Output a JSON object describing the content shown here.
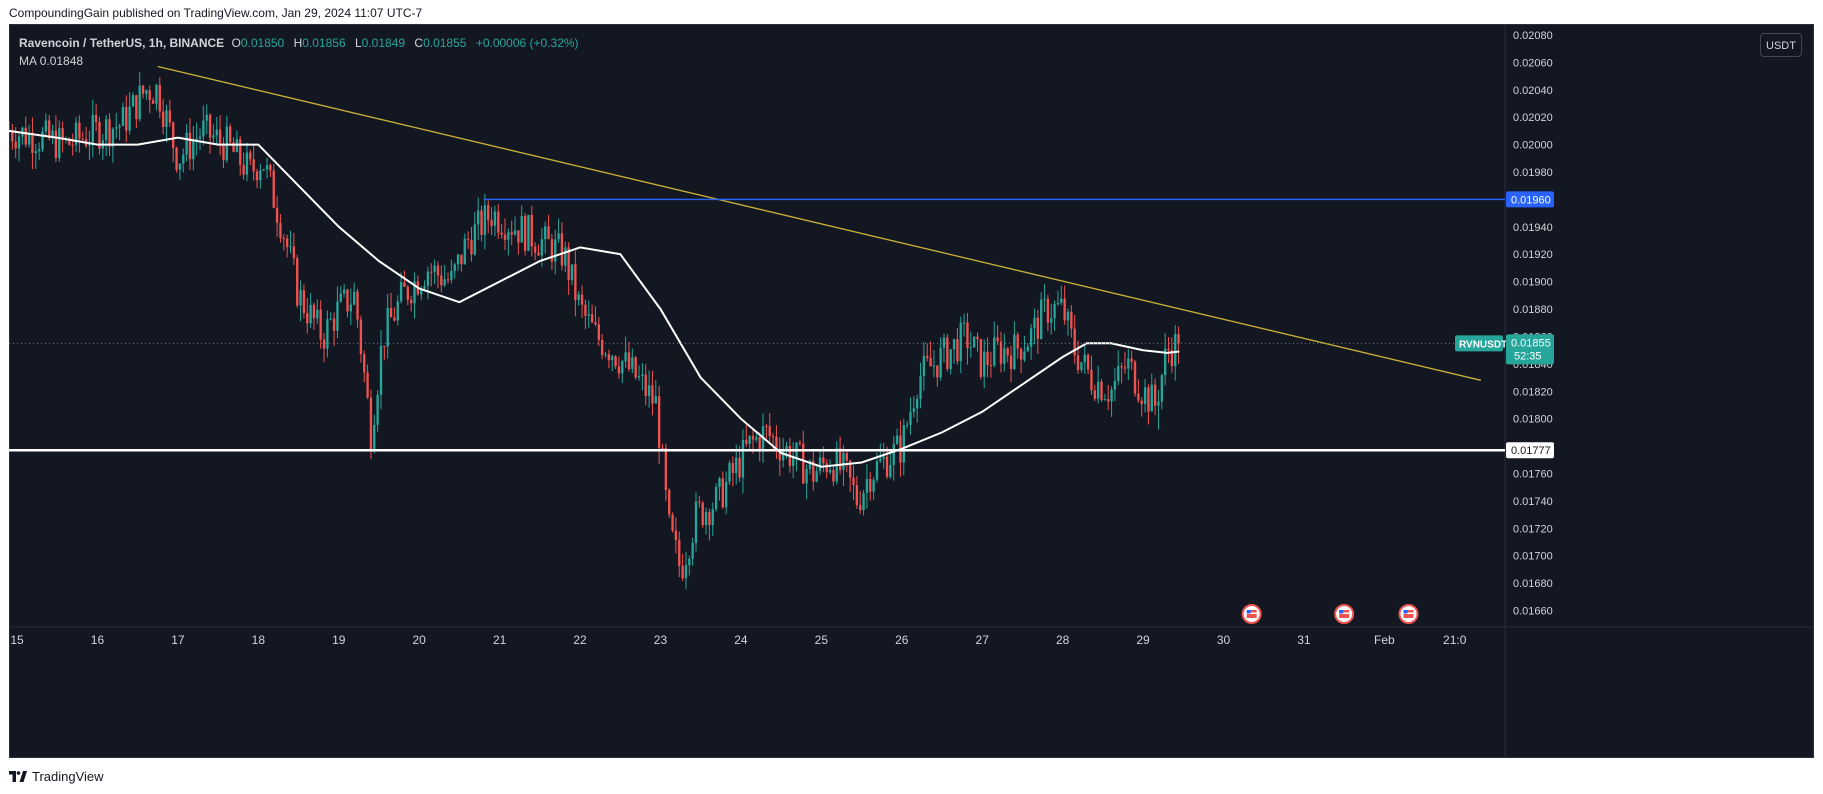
{
  "header": {
    "published_text": "CompoundingGain published on TradingView.com, Jan 29, 2024 11:07 UTC-7"
  },
  "legend": {
    "symbol": "Ravencoin / TetherUS, 1h, BINANCE",
    "open_label": "O",
    "open": "0.01850",
    "high_label": "H",
    "high": "0.01856",
    "low_label": "L",
    "low": "0.01849",
    "close_label": "C",
    "close": "0.01855",
    "change": "+0.00006 (+0.32%)",
    "ma_label": "MA",
    "ma_value": "0.01848"
  },
  "currency_button": "USDT",
  "footer": {
    "brand": "TradingView"
  },
  "colors": {
    "background": "#131722",
    "up": "#26a69a",
    "down": "#ef5350",
    "ma": "#ffffff",
    "trendline": "#c9b037",
    "resistance": "#2962ff",
    "support": "#ffffff"
  },
  "chart_data": {
    "type": "candlestick",
    "symbol": "RVNUSDT",
    "interval": "1h",
    "ylim": [
      0.01648,
      0.02088
    ],
    "y_ticks": [
      0.0166,
      0.0168,
      0.017,
      0.0172,
      0.0174,
      0.0176,
      0.0178,
      0.018,
      0.0182,
      0.0184,
      0.0186,
      0.0188,
      0.019,
      0.0192,
      0.0194,
      0.0196,
      0.0198,
      0.02,
      0.0202,
      0.0204,
      0.0206,
      0.0208
    ],
    "y_tick_labels": [
      "0.01660",
      "0.01680",
      "0.01700",
      "0.01720",
      "0.01740",
      "0.01760",
      "0.01780",
      "0.01800",
      "0.01820",
      "0.01840",
      "0.01860",
      "0.01880",
      "0.01900",
      "0.01920",
      "0.01940",
      "0.01960",
      "0.01980",
      "0.02000",
      "0.02020",
      "0.02040",
      "0.02060",
      "0.02080"
    ],
    "x_range_days": [
      14.9,
      33.5
    ],
    "x_ticks": [
      {
        "day": 15,
        "label": "15"
      },
      {
        "day": 16,
        "label": "16"
      },
      {
        "day": 17,
        "label": "17"
      },
      {
        "day": 18,
        "label": "18"
      },
      {
        "day": 19,
        "label": "19"
      },
      {
        "day": 20,
        "label": "20"
      },
      {
        "day": 21,
        "label": "21"
      },
      {
        "day": 22,
        "label": "22"
      },
      {
        "day": 23,
        "label": "23"
      },
      {
        "day": 24,
        "label": "24"
      },
      {
        "day": 25,
        "label": "25"
      },
      {
        "day": 26,
        "label": "26"
      },
      {
        "day": 27,
        "label": "27"
      },
      {
        "day": 28,
        "label": "28"
      },
      {
        "day": 29,
        "label": "29"
      },
      {
        "day": 30,
        "label": "30"
      },
      {
        "day": 31,
        "label": "31"
      },
      {
        "day": 32,
        "label": "Feb"
      },
      {
        "day": 32.875,
        "label": "21:0"
      }
    ],
    "anchors": [
      [
        14.9,
        0.0201
      ],
      [
        15.3,
        0.02005
      ],
      [
        15.6,
        0.02
      ],
      [
        16.0,
        0.0201
      ],
      [
        16.3,
        0.02015
      ],
      [
        16.6,
        0.0204
      ],
      [
        16.75,
        0.0204
      ],
      [
        17.0,
        0.0199
      ],
      [
        17.3,
        0.0201
      ],
      [
        17.6,
        0.02
      ],
      [
        17.9,
        0.0198
      ],
      [
        18.05,
        0.0199
      ],
      [
        18.3,
        0.0194
      ],
      [
        18.5,
        0.0189
      ],
      [
        18.8,
        0.0186
      ],
      [
        19.0,
        0.0188
      ],
      [
        19.2,
        0.0189
      ],
      [
        19.4,
        0.0179
      ],
      [
        19.55,
        0.0186
      ],
      [
        19.8,
        0.0189
      ],
      [
        20.1,
        0.0191
      ],
      [
        20.4,
        0.019
      ],
      [
        20.6,
        0.0193
      ],
      [
        20.9,
        0.0195
      ],
      [
        21.2,
        0.0194
      ],
      [
        21.5,
        0.0193
      ],
      [
        21.8,
        0.0192
      ],
      [
        22.0,
        0.0188
      ],
      [
        22.2,
        0.0186
      ],
      [
        22.4,
        0.0185
      ],
      [
        22.7,
        0.0183
      ],
      [
        22.95,
        0.0181
      ],
      [
        23.1,
        0.0172
      ],
      [
        23.25,
        0.0169
      ],
      [
        23.45,
        0.0173
      ],
      [
        23.7,
        0.0174
      ],
      [
        23.9,
        0.0176
      ],
      [
        24.1,
        0.0178
      ],
      [
        24.3,
        0.0179
      ],
      [
        24.5,
        0.0178
      ],
      [
        24.7,
        0.0177
      ],
      [
        24.9,
        0.0176
      ],
      [
        25.1,
        0.0177
      ],
      [
        25.3,
        0.0176
      ],
      [
        25.45,
        0.0174
      ],
      [
        25.6,
        0.0176
      ],
      [
        25.8,
        0.0177
      ],
      [
        26.0,
        0.0178
      ],
      [
        26.2,
        0.0183
      ],
      [
        26.4,
        0.0184
      ],
      [
        26.6,
        0.0185
      ],
      [
        26.8,
        0.0186
      ],
      [
        27.0,
        0.0184
      ],
      [
        27.2,
        0.0185
      ],
      [
        27.4,
        0.0185
      ],
      [
        27.6,
        0.0186
      ],
      [
        27.8,
        0.0188
      ],
      [
        28.0,
        0.0188
      ],
      [
        28.15,
        0.0185
      ],
      [
        28.35,
        0.0183
      ],
      [
        28.6,
        0.0182
      ],
      [
        28.8,
        0.0184
      ],
      [
        29.0,
        0.0182
      ],
      [
        29.15,
        0.0181
      ],
      [
        29.3,
        0.0185
      ],
      [
        29.45,
        0.01855
      ]
    ],
    "ma_line": [
      [
        14.9,
        0.0201
      ],
      [
        15.5,
        0.02005
      ],
      [
        16.0,
        0.02
      ],
      [
        16.5,
        0.02
      ],
      [
        17.0,
        0.02005
      ],
      [
        17.5,
        0.02
      ],
      [
        18.0,
        0.02
      ],
      [
        18.5,
        0.0197
      ],
      [
        19.0,
        0.0194
      ],
      [
        19.5,
        0.01915
      ],
      [
        20.0,
        0.01895
      ],
      [
        20.5,
        0.01885
      ],
      [
        21.0,
        0.019
      ],
      [
        21.5,
        0.01915
      ],
      [
        22.0,
        0.01925
      ],
      [
        22.5,
        0.0192
      ],
      [
        23.0,
        0.0188
      ],
      [
        23.5,
        0.0183
      ],
      [
        24.0,
        0.018
      ],
      [
        24.5,
        0.01775
      ],
      [
        25.0,
        0.01765
      ],
      [
        25.5,
        0.01768
      ],
      [
        26.0,
        0.01778
      ],
      [
        26.5,
        0.0179
      ],
      [
        27.0,
        0.01805
      ],
      [
        27.5,
        0.01825
      ],
      [
        28.0,
        0.01845
      ],
      [
        28.3,
        0.01855
      ],
      [
        28.6,
        0.01855
      ],
      [
        29.0,
        0.0185
      ],
      [
        29.3,
        0.01848
      ],
      [
        29.45,
        0.01849
      ]
    ],
    "trendline": {
      "start": [
        16.75,
        0.02057
      ],
      "end": [
        33.2,
        0.01828
      ]
    },
    "resistance": {
      "value": 0.0196,
      "label": "0.01960",
      "from_day": 20.8
    },
    "support": {
      "value": 0.01777,
      "label": "0.01777"
    },
    "current_price": {
      "symbol": "RVNUSDT",
      "value": 0.01855,
      "label": "0.01855",
      "countdown": "52:35"
    },
    "event_markers_days": [
      30.35,
      31.5,
      32.3
    ],
    "up_color": "#26a69a",
    "down_color": "#ef5350"
  }
}
